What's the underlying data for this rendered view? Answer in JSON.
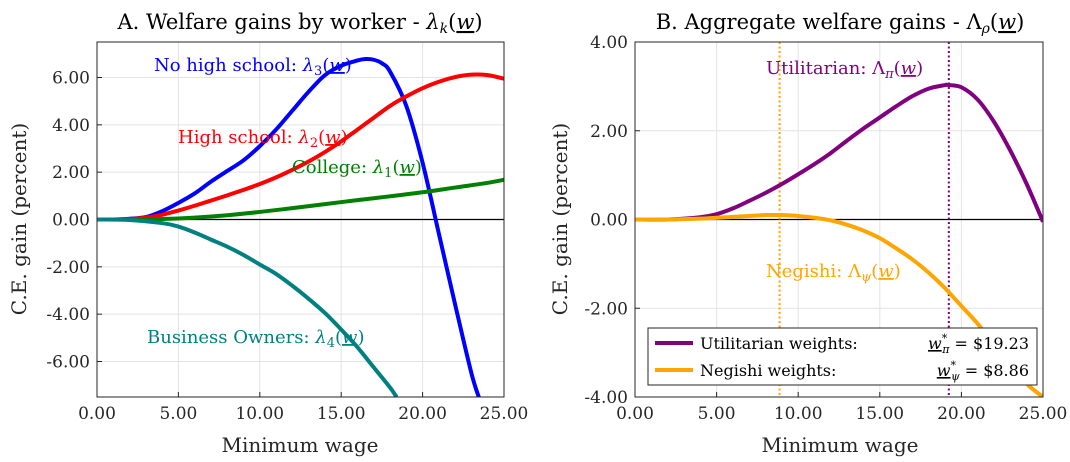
{
  "chart_data": [
    {
      "type": "line",
      "title": "A. Welfare gains by worker - λk(w)",
      "xlabel": "Minimum wage",
      "ylabel": "C.E. gain (percent)",
      "xlim": [
        0,
        25
      ],
      "ylim": [
        -7.5,
        7.5
      ],
      "xticks": [
        "0.00",
        "5.00",
        "10.00",
        "15.00",
        "20.00",
        "25.00"
      ],
      "yticks": [
        "-6.00",
        "-4.00",
        "-2.00",
        "0.00",
        "2.00",
        "4.00",
        "6.00"
      ],
      "grid": true,
      "zero_line": true,
      "series": [
        {
          "name": "No high school: λ3(w)",
          "color": "#0000ff",
          "x": [
            0,
            1,
            2,
            3,
            4,
            5,
            6,
            7,
            8,
            9,
            10,
            11,
            12,
            13,
            14,
            15,
            16,
            16.5,
            17,
            17.5,
            18,
            19,
            20,
            21,
            22,
            23,
            23.5
          ],
          "y": [
            0,
            0,
            0.03,
            0.1,
            0.35,
            0.7,
            1.1,
            1.6,
            2.05,
            2.5,
            3.1,
            3.8,
            4.6,
            5.4,
            6.1,
            6.5,
            6.72,
            6.78,
            6.75,
            6.6,
            6.25,
            4.8,
            2.4,
            -0.6,
            -3.6,
            -6.5,
            -7.6
          ]
        },
        {
          "name": "High school: λ2(w)",
          "color": "#ff0000",
          "x": [
            0,
            1,
            2,
            3,
            4,
            5,
            6,
            7,
            8,
            9,
            10,
            11,
            12,
            13,
            14,
            15,
            16,
            17,
            18,
            19,
            20,
            21,
            22,
            23,
            24,
            25
          ],
          "y": [
            0,
            0,
            0.02,
            0.08,
            0.2,
            0.38,
            0.58,
            0.8,
            1.02,
            1.25,
            1.5,
            1.78,
            2.1,
            2.45,
            2.85,
            3.3,
            3.8,
            4.3,
            4.8,
            5.2,
            5.55,
            5.82,
            6.02,
            6.12,
            6.1,
            5.95
          ]
        },
        {
          "name": "College: λ1(w)",
          "color": "#008000",
          "x": [
            0,
            2,
            4,
            6,
            8,
            10,
            12,
            14,
            16,
            18,
            20,
            22,
            24,
            25
          ],
          "y": [
            0,
            0,
            0.02,
            0.08,
            0.18,
            0.32,
            0.48,
            0.65,
            0.82,
            0.98,
            1.15,
            1.35,
            1.55,
            1.68
          ]
        },
        {
          "name": "Business Owners: λ4(w)",
          "color": "#008080",
          "x": [
            0,
            2,
            4,
            5,
            6,
            7,
            8,
            9,
            10,
            11,
            12,
            13,
            14,
            15,
            16,
            17,
            18,
            18.4
          ],
          "y": [
            0,
            -0.02,
            -0.15,
            -0.3,
            -0.55,
            -0.85,
            -1.15,
            -1.5,
            -1.9,
            -2.3,
            -2.8,
            -3.35,
            -3.95,
            -4.65,
            -5.4,
            -6.25,
            -7.1,
            -7.5
          ]
        }
      ],
      "annotations": [
        {
          "text": "No high school: λ3(w)",
          "color": "#0000ff"
        },
        {
          "text": "High school: λ2(w)",
          "color": "#ff0000"
        },
        {
          "text": "College: λ1(w)",
          "color": "#008000"
        },
        {
          "text": "Business Owners: λ4(w)",
          "color": "#008080"
        }
      ]
    },
    {
      "type": "line",
      "title": "B. Aggregate welfare gains - Λρ(w)",
      "xlabel": "Minimum wage",
      "ylabel": "C.E. gain (percent)",
      "xlim": [
        0,
        25
      ],
      "ylim": [
        -4,
        4
      ],
      "xticks": [
        "0.00",
        "5.00",
        "10.00",
        "15.00",
        "20.00",
        "25.00"
      ],
      "yticks": [
        "-4.00",
        "-2.00",
        "0.00",
        "2.00",
        "4.00"
      ],
      "grid": true,
      "zero_line": true,
      "legend_position": "bottom-right",
      "series": [
        {
          "name": "Utilitarian weights:",
          "legend_value": "w*π = $19.23",
          "color": "#800080",
          "x": [
            0,
            2,
            4,
            5,
            6,
            7,
            8,
            9,
            10,
            11,
            12,
            13,
            14,
            15,
            16,
            17,
            18,
            19,
            19.23,
            20,
            21,
            22,
            23,
            24,
            25
          ],
          "y": [
            0,
            0,
            0.05,
            0.12,
            0.25,
            0.42,
            0.6,
            0.8,
            1.02,
            1.25,
            1.5,
            1.78,
            2.05,
            2.3,
            2.55,
            2.78,
            2.95,
            3.03,
            3.03,
            2.98,
            2.7,
            2.2,
            1.55,
            0.8,
            -0.05
          ]
        },
        {
          "name": "Negishi weights:",
          "legend_value": "w*ψ = $8.86",
          "color": "#ffa500",
          "x": [
            0,
            2,
            4,
            6,
            7,
            8,
            8.86,
            10,
            11,
            12,
            13,
            14,
            15,
            16,
            17,
            18,
            19,
            20,
            21,
            22,
            23,
            24,
            25
          ],
          "y": [
            0,
            0,
            0.02,
            0.06,
            0.08,
            0.1,
            0.1,
            0.08,
            0.04,
            -0.02,
            -0.12,
            -0.25,
            -0.42,
            -0.65,
            -0.9,
            -1.2,
            -1.55,
            -1.95,
            -2.35,
            -2.8,
            -3.25,
            -3.7,
            -4.0
          ]
        }
      ],
      "vlines": [
        {
          "x": 19.23,
          "color": "#800080"
        },
        {
          "x": 8.86,
          "color": "#ffa500"
        }
      ],
      "annotations": [
        {
          "text": "Utilitarian: Λπ(w)",
          "color": "#800080"
        },
        {
          "text": "Negishi: Λψ(w)",
          "color": "#ffa500"
        }
      ]
    }
  ]
}
